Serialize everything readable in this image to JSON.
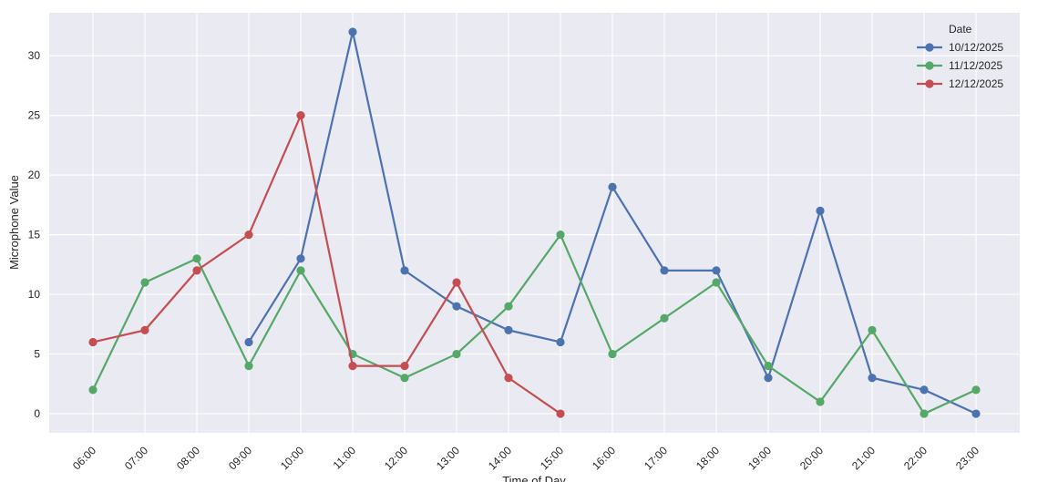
{
  "chart_data": {
    "type": "line",
    "title": "",
    "xlabel": "Time of Day",
    "ylabel": "Microphone Value",
    "categories": [
      "06:00",
      "07:00",
      "08:00",
      "09:00",
      "10:00",
      "11:00",
      "12:00",
      "13:00",
      "14:00",
      "15:00",
      "16:00",
      "17:00",
      "18:00",
      "19:00",
      "20:00",
      "21:00",
      "22:00",
      "23:00"
    ],
    "yticks": [
      0,
      5,
      10,
      15,
      20,
      25,
      30
    ],
    "ylim": [
      -1.6,
      33.6
    ],
    "grid": true,
    "legend": {
      "title": "Date",
      "placement": "top-right"
    },
    "series": [
      {
        "name": "10/12/2025",
        "color": "#4c72b0",
        "values": [
          null,
          null,
          null,
          6,
          13,
          32,
          12,
          9,
          7,
          6,
          19,
          12,
          12,
          3,
          17,
          3,
          2,
          0
        ]
      },
      {
        "name": "11/12/2025",
        "color": "#55a868",
        "values": [
          2,
          11,
          13,
          4,
          12,
          5,
          3,
          5,
          9,
          15,
          5,
          8,
          11,
          4,
          1,
          7,
          0,
          2
        ]
      },
      {
        "name": "12/12/2025",
        "color": "#c44e52",
        "values": [
          6,
          7,
          12,
          15,
          25,
          4,
          4,
          11,
          3,
          0,
          null,
          null,
          null,
          null,
          null,
          null,
          null,
          null
        ]
      }
    ],
    "colors": {
      "plot_background": "#eaeaf2",
      "grid": "#ffffff"
    }
  }
}
